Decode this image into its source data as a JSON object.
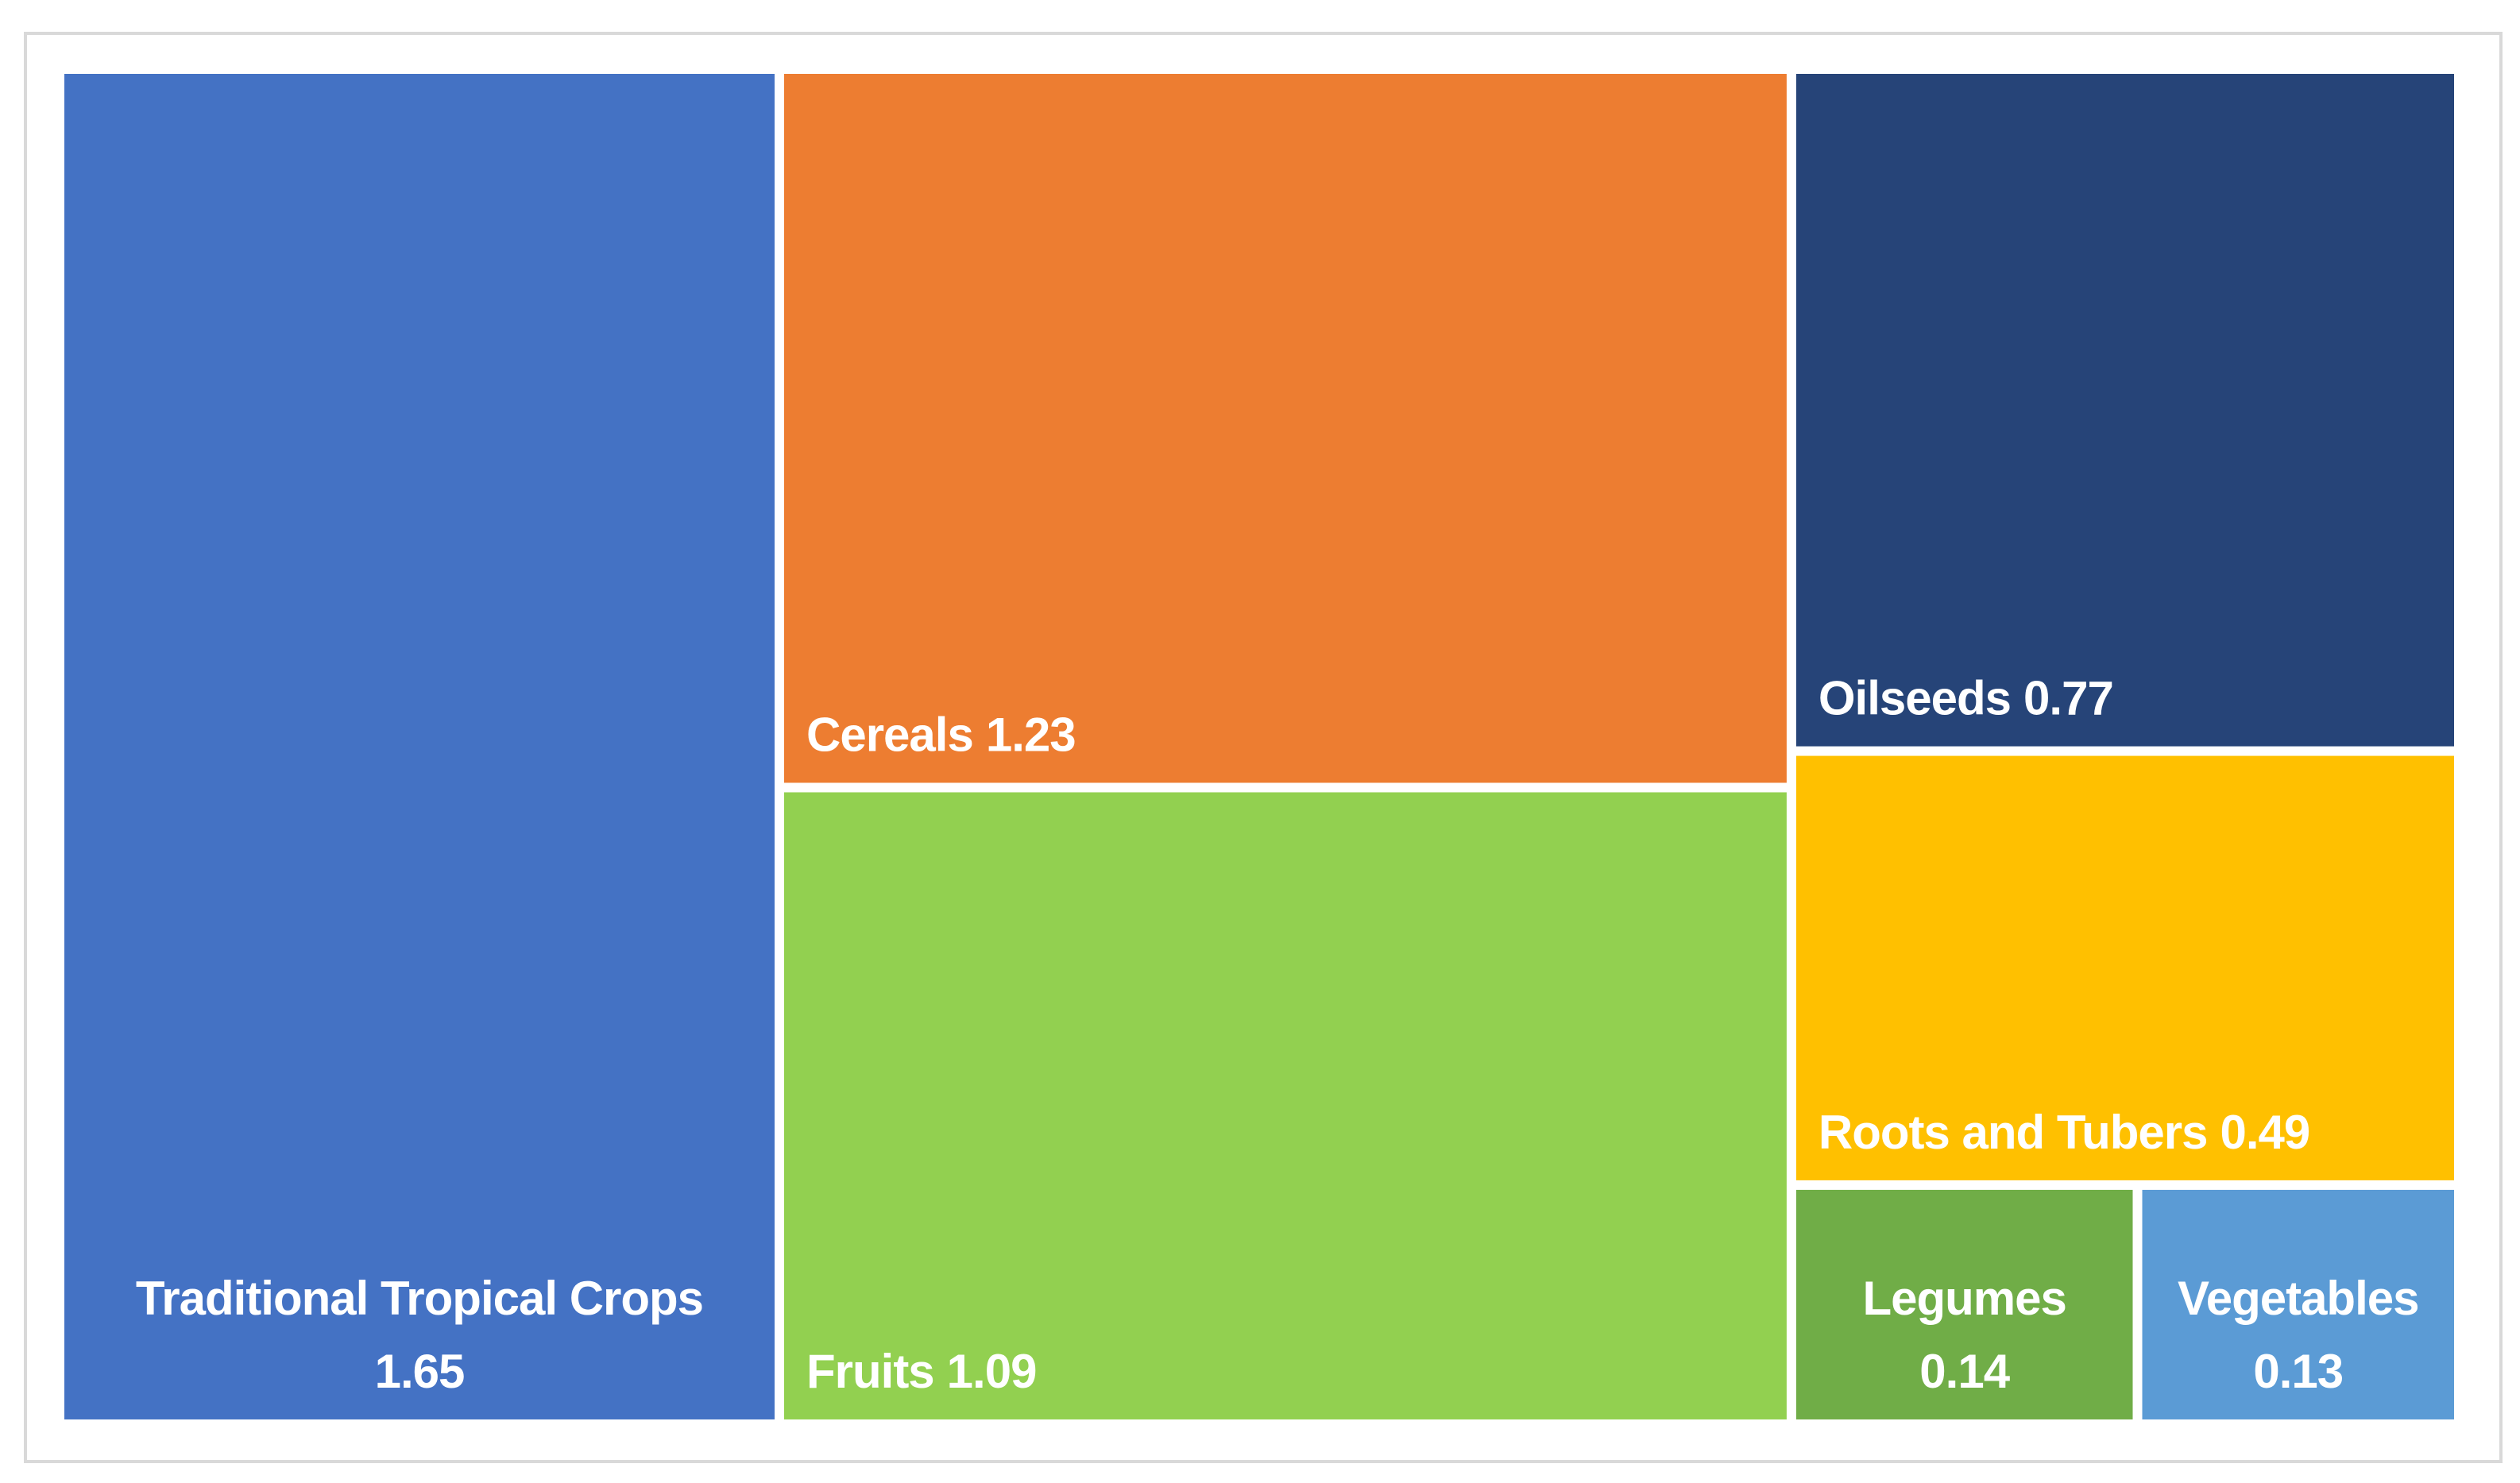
{
  "chart_data": {
    "type": "treemap",
    "categories": [
      "Traditional Tropical Crops",
      "Cereals",
      "Fruits",
      "Oilseeds",
      "Roots and Tubers",
      "Legumes",
      "Vegetables"
    ],
    "values": [
      1.65,
      1.23,
      1.09,
      0.77,
      0.49,
      0.14,
      0.13
    ],
    "colors": [
      "#4472c4",
      "#ed7d31",
      "#92d050",
      "#264478",
      "#ffc000",
      "#70ad47",
      "#5b9bd5"
    ]
  }
}
